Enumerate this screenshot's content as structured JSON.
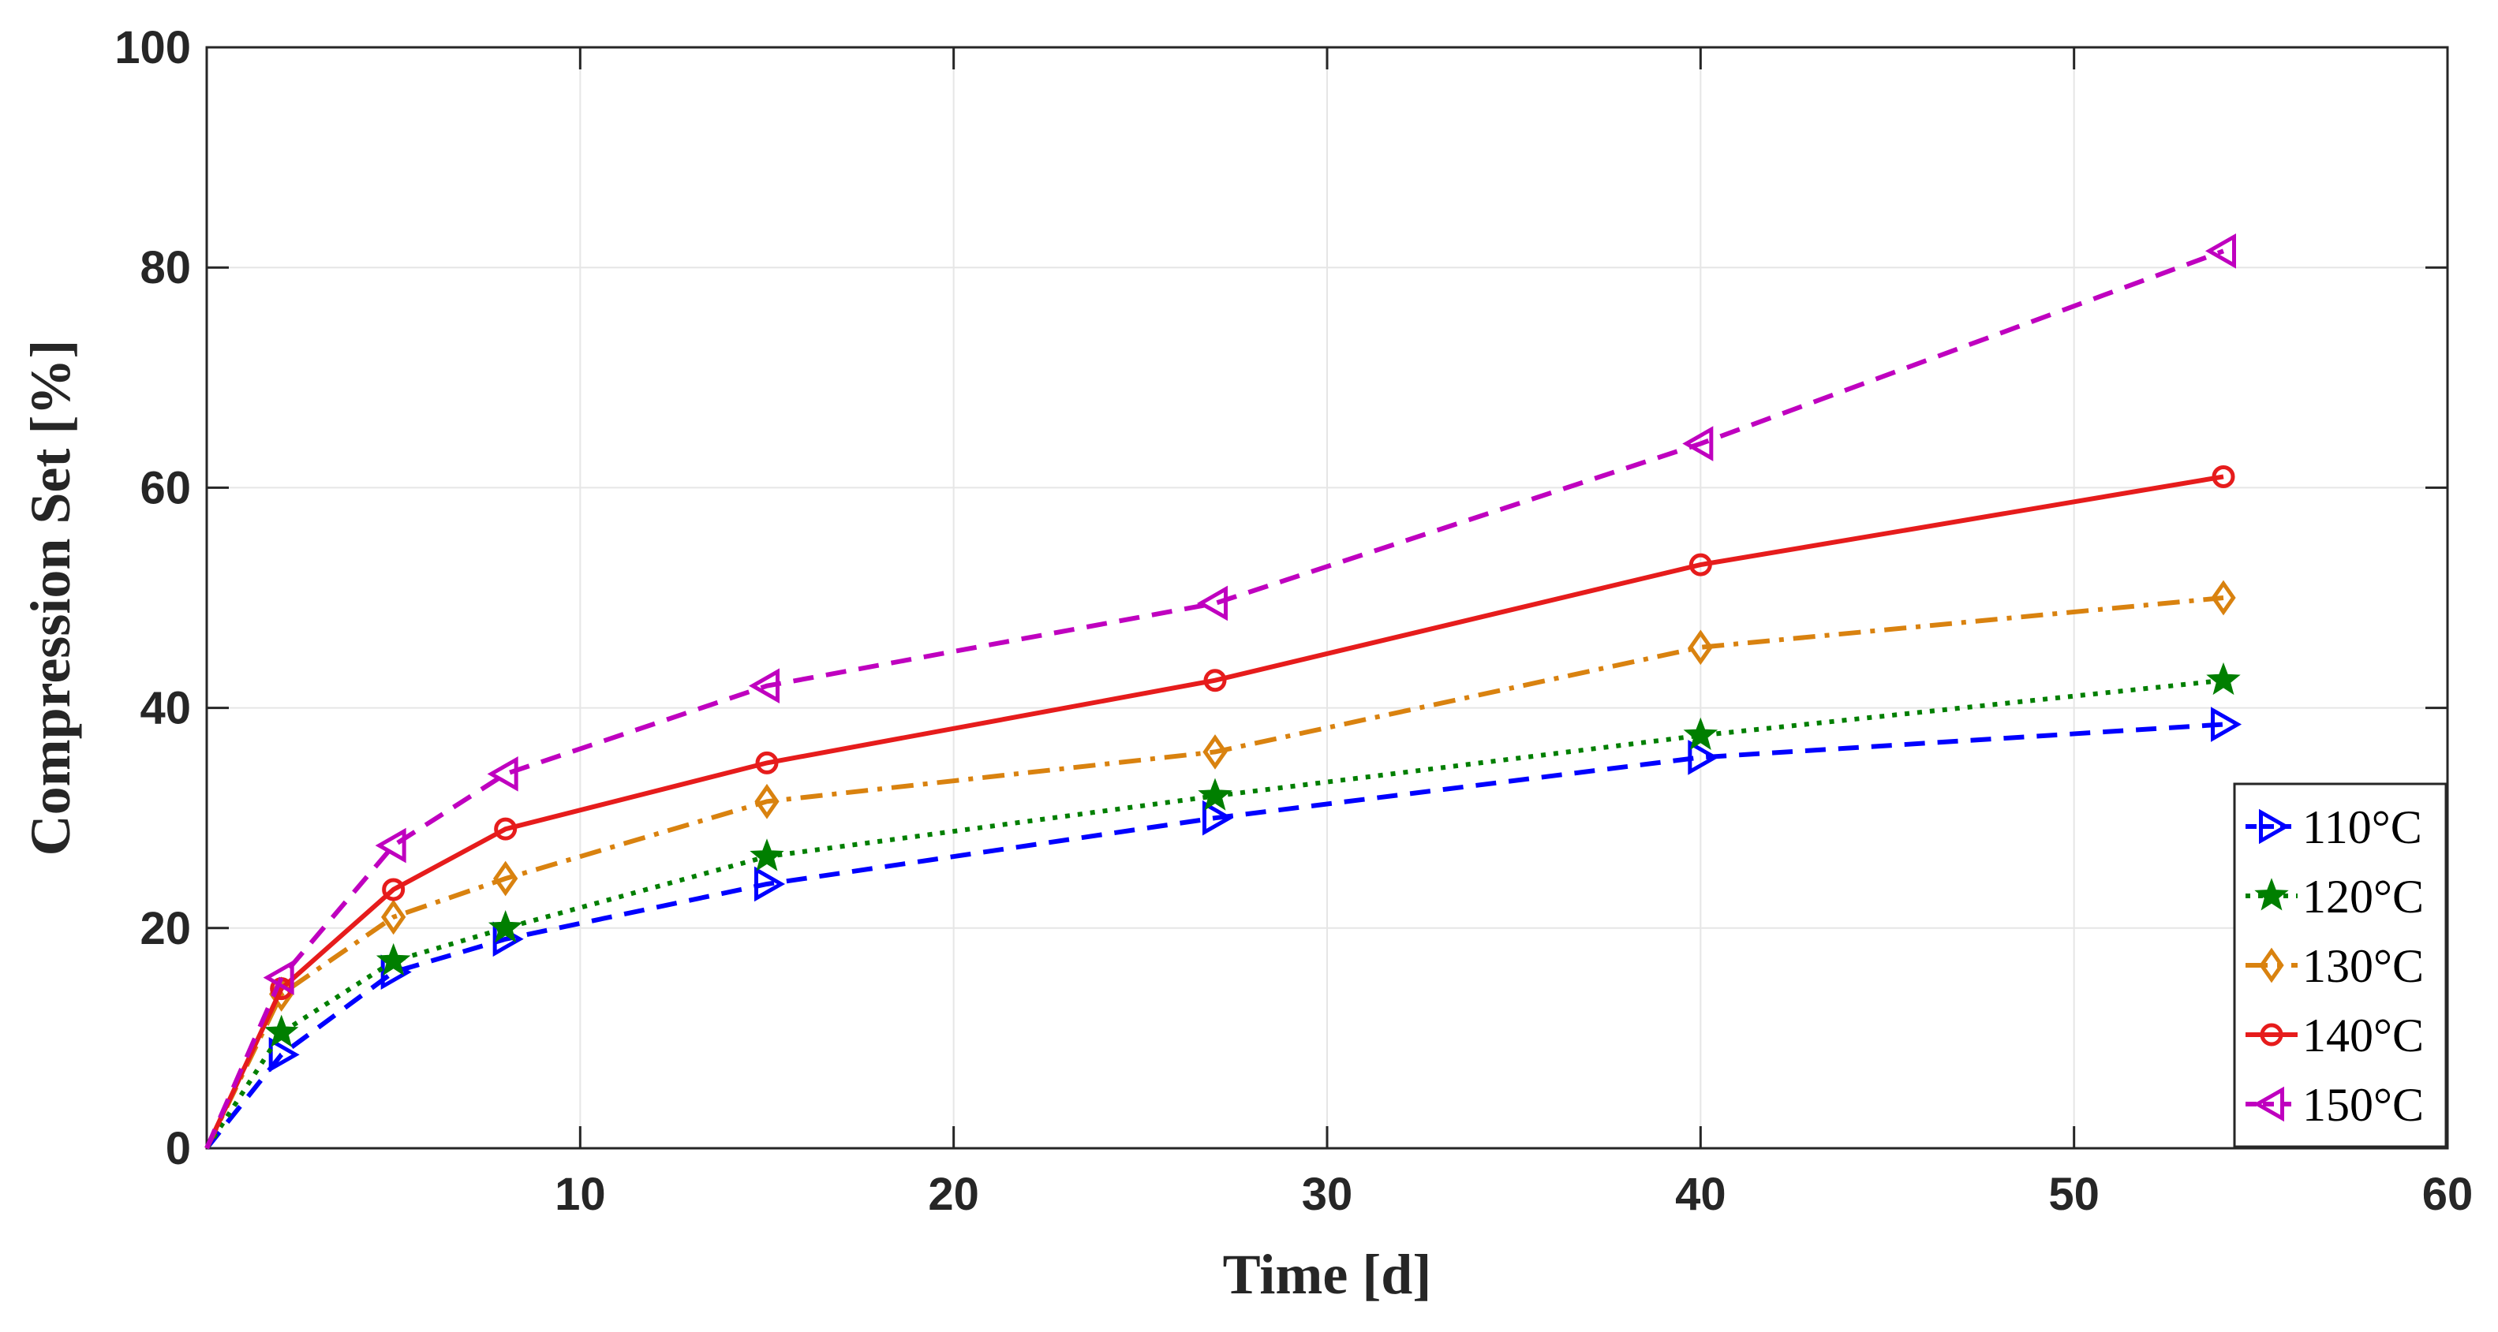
{
  "chart_data": {
    "type": "line",
    "title": "",
    "xlabel": "Time [d]",
    "ylabel": "Compression Set [%]",
    "xlim": [
      0,
      60
    ],
    "ylim": [
      0,
      100
    ],
    "xticks": [
      10,
      20,
      30,
      40,
      50,
      60
    ],
    "yticks": [
      0,
      20,
      40,
      60,
      80,
      100
    ],
    "grid": true,
    "legend_position": "bottom-right",
    "x": [
      0,
      2,
      5,
      8,
      15,
      27,
      40,
      54
    ],
    "series": [
      {
        "name": "110°C",
        "color": "#0000ff",
        "marker": "triangle-right",
        "line_style": "dashed",
        "values": [
          0,
          8.5,
          16,
          19,
          24,
          30,
          35.5,
          38.5
        ]
      },
      {
        "name": "120°C",
        "color": "#007f00",
        "marker": "star",
        "line_style": "dotted",
        "values": [
          0,
          10.5,
          17,
          20,
          26.5,
          32,
          37.5,
          42.5
        ]
      },
      {
        "name": "130°C",
        "color": "#d9820f",
        "marker": "diamond",
        "line_style": "dash-dot",
        "values": [
          0,
          14,
          21,
          24.5,
          31.5,
          36,
          45.5,
          50
        ]
      },
      {
        "name": "140°C",
        "color": "#e61c1c",
        "marker": "circle",
        "line_style": "solid",
        "values": [
          0,
          14.5,
          23.5,
          29,
          35,
          42.5,
          53,
          61
        ]
      },
      {
        "name": "150°C",
        "color": "#bf00bf",
        "marker": "triangle-left",
        "line_style": "dashed",
        "values": [
          0,
          15.5,
          27.5,
          34,
          42,
          49.5,
          64,
          81.5
        ]
      }
    ]
  }
}
